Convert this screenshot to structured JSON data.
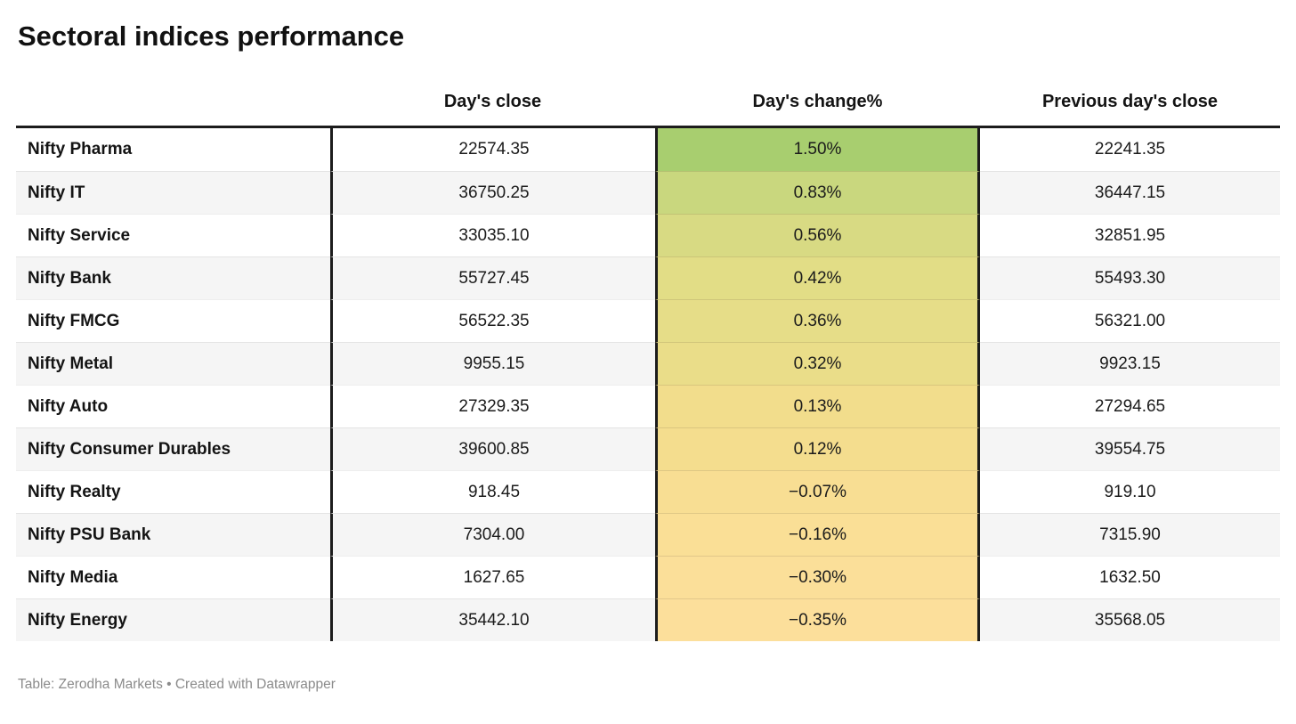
{
  "title": "Sectoral indices performance",
  "footer": "Table: Zerodha Markets • Created with Datawrapper",
  "accent_colors": {
    "positive_max": "#a8ce6f",
    "negative_max": "#fcdf9b",
    "rule_color": "#1c1c1c",
    "zebra_stripe": "#f5f5f5",
    "footer_text": "#8b8b8b"
  },
  "chart_data": {
    "type": "table",
    "title": "Sectoral indices performance",
    "columns": [
      "",
      "Day's close",
      "Day's change%",
      "Previous day's close"
    ],
    "heatmap_column": "Day's change%",
    "rows": [
      {
        "name": "Nifty Pharma",
        "close": "22574.35",
        "change": "1.50%",
        "prev": "22241.35",
        "change_value": 1.5,
        "change_color": "#a8ce6f"
      },
      {
        "name": "Nifty IT",
        "close": "36750.25",
        "change": "0.83%",
        "prev": "36447.15",
        "change_value": 0.83,
        "change_color": "#c9d77e"
      },
      {
        "name": "Nifty Service",
        "close": "33035.10",
        "change": "0.56%",
        "prev": "32851.95",
        "change_value": 0.56,
        "change_color": "#d8da83"
      },
      {
        "name": "Nifty Bank",
        "close": "55727.45",
        "change": "0.42%",
        "prev": "55493.30",
        "change_value": 0.42,
        "change_color": "#e2dd86"
      },
      {
        "name": "Nifty FMCG",
        "close": "56522.35",
        "change": "0.36%",
        "prev": "56321.00",
        "change_value": 0.36,
        "change_color": "#e6dd88"
      },
      {
        "name": "Nifty Metal",
        "close": "9955.15",
        "change": "0.32%",
        "prev": "9923.15",
        "change_value": 0.32,
        "change_color": "#eadd89"
      },
      {
        "name": "Nifty Auto",
        "close": "27329.35",
        "change": "0.13%",
        "prev": "27294.65",
        "change_value": 0.13,
        "change_color": "#f2dd8c"
      },
      {
        "name": "Nifty Consumer Durables",
        "close": "39600.85",
        "change": "0.12%",
        "prev": "39554.75",
        "change_value": 0.12,
        "change_color": "#f4dd8e"
      },
      {
        "name": "Nifty Realty",
        "close": "918.45",
        "change": "−0.07%",
        "prev": "919.10",
        "change_value": -0.07,
        "change_color": "#f8de93"
      },
      {
        "name": "Nifty PSU Bank",
        "close": "7304.00",
        "change": "−0.16%",
        "prev": "7315.90",
        "change_value": -0.16,
        "change_color": "#fadf96"
      },
      {
        "name": "Nifty Media",
        "close": "1627.65",
        "change": "−0.30%",
        "prev": "1632.50",
        "change_value": -0.3,
        "change_color": "#fbdf99"
      },
      {
        "name": "Nifty Energy",
        "close": "35442.10",
        "change": "−0.35%",
        "prev": "35568.05",
        "change_value": -0.35,
        "change_color": "#fcdf9b"
      }
    ]
  }
}
